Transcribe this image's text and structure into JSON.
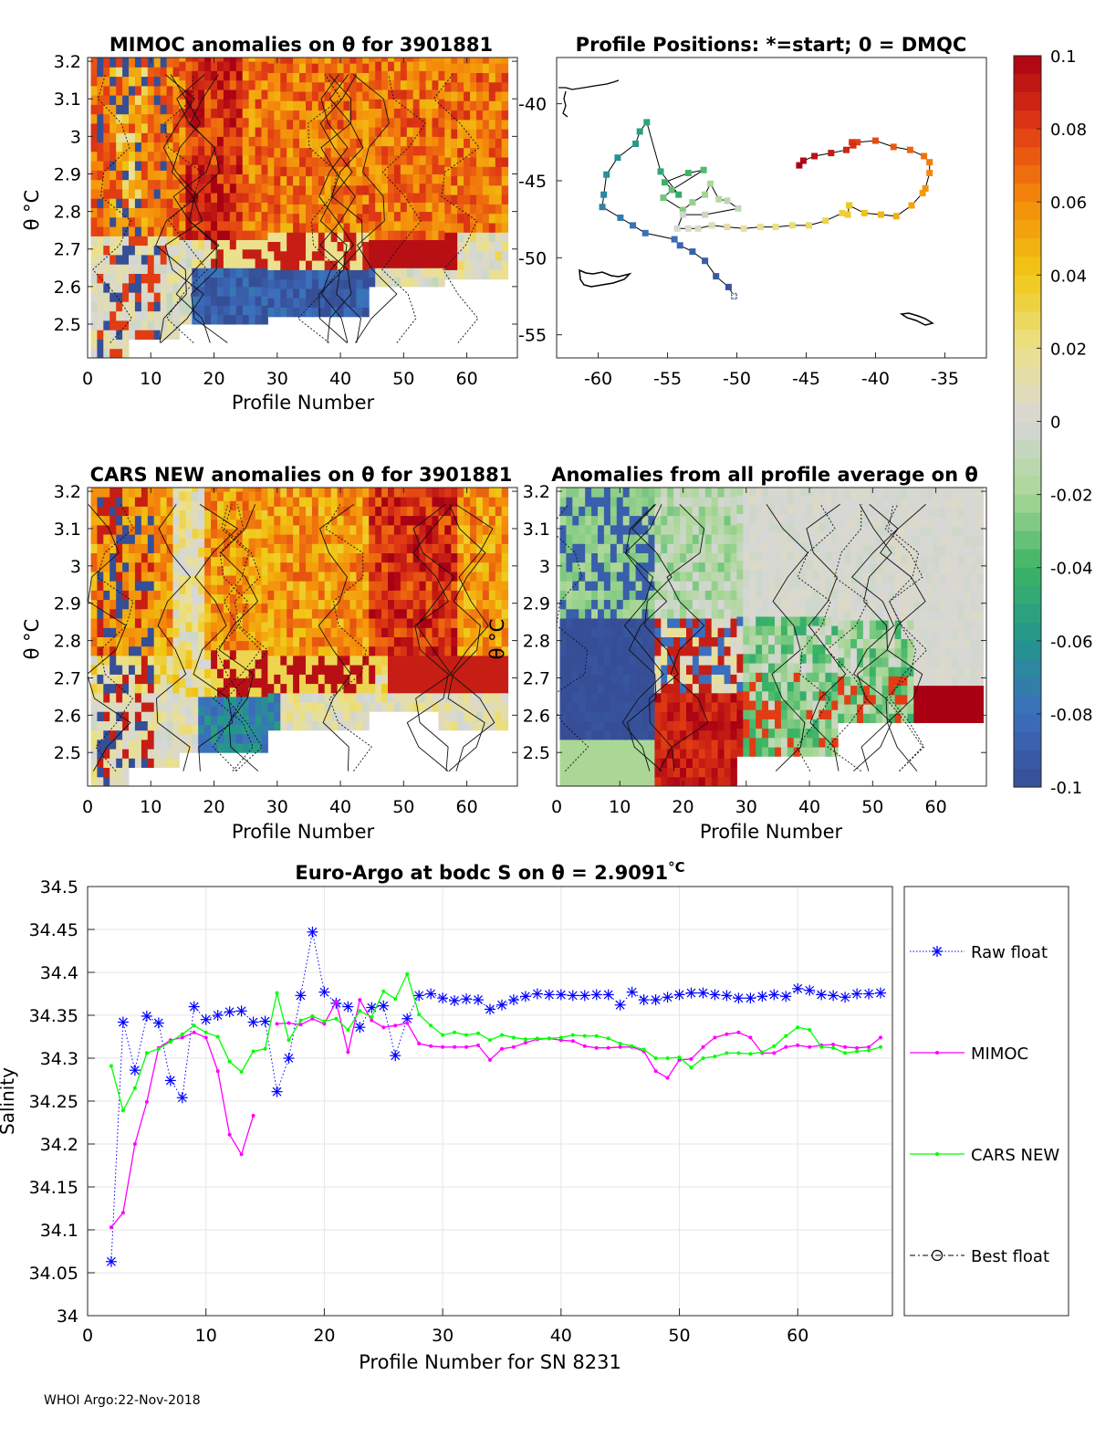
{
  "footer": "WHOI Argo:22-Nov-2018",
  "colorbar": {
    "ticks": [
      "0.1",
      "0.08",
      "0.06",
      "0.04",
      "0.02",
      "0",
      "-0.02",
      "-0.04",
      "-0.06",
      "-0.08",
      "-0.1"
    ],
    "range": [
      -0.1,
      0.1
    ]
  },
  "panels": {
    "mimoc": {
      "title": "MIMOC anomalies on θ  for 3901881",
      "ylabel": "θ °C",
      "xlabel": "Profile Number",
      "xticks": [
        "0",
        "10",
        "20",
        "30",
        "40",
        "50",
        "60"
      ],
      "yticks": [
        "3.2",
        "3.1",
        "3",
        "2.9",
        "2.8",
        "2.7",
        "2.6",
        "2.5"
      ]
    },
    "positions": {
      "title": "Profile Positions: *=start; 0 = DMQC",
      "xticks": [
        "-60",
        "-55",
        "-50",
        "-45",
        "-40",
        "-35"
      ],
      "yticks": [
        "-40",
        "-45",
        "-50",
        "-55"
      ]
    },
    "cars": {
      "title": "CARS NEW anomalies on θ for 3901881",
      "ylabel": "θ °C",
      "xlabel": "Profile Number",
      "xticks": [
        "0",
        "10",
        "20",
        "30",
        "40",
        "50",
        "60"
      ],
      "yticks": [
        "3.2",
        "3.1",
        "3",
        "2.9",
        "2.8",
        "2.7",
        "2.6",
        "2.5"
      ]
    },
    "allprof": {
      "title": "Anomalies from all profile average on θ",
      "ylabel": "θ °C",
      "xlabel": "Profile Number",
      "xticks": [
        "0",
        "10",
        "20",
        "30",
        "40",
        "50",
        "60"
      ],
      "yticks": [
        "3.2",
        "3.1",
        "3",
        "2.9",
        "2.8",
        "2.7",
        "2.6",
        "2.5"
      ]
    },
    "salinity": {
      "title": "Euro-Argo at bodc S on θ = 2.9091",
      "title_unit": "°C",
      "xlabel": "Profile Number for SN 8231",
      "ylabel": "Salinity",
      "xticks": [
        "0",
        "10",
        "20",
        "30",
        "40",
        "50",
        "60"
      ],
      "yticks": [
        "34.5",
        "34.45",
        "34.4",
        "34.35",
        "34.3",
        "34.25",
        "34.2",
        "34.15",
        "34.1",
        "34.05",
        "34"
      ],
      "legend": [
        "Raw float",
        "MIMOC",
        "CARS NEW",
        "Best float"
      ]
    }
  },
  "chart_data": [
    {
      "type": "heatmap",
      "title": "MIMOC anomalies on θ  for 3901881",
      "xlabel": "Profile Number",
      "ylabel": "θ °C",
      "xlim": [
        0,
        68
      ],
      "ylim": [
        2.41,
        3.21
      ],
      "pattern": "mostly positive (0.04 to 0.1) above 2.7°C; negative (-0.1) patches near 2.5-2.65°C for profiles 15-45; strong positive band near 2.65-2.7°C for profiles 45-58"
    },
    {
      "type": "scatter",
      "title": "Profile Positions: *=start; 0 = DMQC",
      "xlim": [
        -63,
        -32
      ],
      "ylim": [
        -56.5,
        -37
      ],
      "track_lon": [
        -50.2,
        -50.6,
        -51.5,
        -52.3,
        -53.2,
        -54.1,
        -54.5,
        -56.6,
        -57.5,
        -58.4,
        -59.7,
        -59.6,
        -59.4,
        -58.6,
        -57.3,
        -57,
        -56.5,
        -55.5,
        -54.2,
        -55.2,
        -53.5,
        -52.4,
        -54.7,
        -55.3,
        -53.9,
        -53.2,
        -52.3,
        -51.9,
        -51.3,
        -50.7,
        -49.9,
        -52.3,
        -53.9,
        -54.3,
        -53.5,
        -52.8,
        -51.8,
        -50.7,
        -49.5,
        -48.3,
        -47.2,
        -46,
        -44.8,
        -43.6,
        -42.4,
        -42,
        -41.9,
        -40.8,
        -39.6,
        -38.5,
        -37.4,
        -36.6,
        -36.4,
        -36.1,
        -36.1,
        -36.5,
        -37.5,
        -38.7,
        -40,
        -41.3,
        -41.7,
        -41.6,
        -42.1,
        -43.2,
        -44.4,
        -45.2,
        -45.5
      ],
      "track_lat": [
        -52.5,
        -51.9,
        -51.2,
        -50.2,
        -49.6,
        -49.2,
        -48.8,
        -48.4,
        -47.9,
        -47.4,
        -46.7,
        -45.9,
        -44.6,
        -43.5,
        -42.6,
        -41.8,
        -41.2,
        -44.4,
        -45.9,
        -45.1,
        -44.5,
        -44.3,
        -45.6,
        -46.1,
        -46.9,
        -46.4,
        -45.9,
        -45.2,
        -46.2,
        -46.3,
        -46.8,
        -47.2,
        -47.2,
        -48.1,
        -48.1,
        -48.1,
        -47.9,
        -48,
        -48.1,
        -48.0,
        -48.0,
        -47.9,
        -47.9,
        -47.6,
        -47.1,
        -47.2,
        -46.6,
        -47.1,
        -47.2,
        -47.3,
        -46.6,
        -45.8,
        -45.5,
        -44.5,
        -43.8,
        -43.4,
        -43.0,
        -42.8,
        -42.4,
        -42.5,
        -42.5,
        -42.7,
        -43.0,
        -43.2,
        -43.4,
        -43.7,
        -44.0
      ],
      "start": [
        -50.2,
        -52.5
      ]
    },
    {
      "type": "heatmap",
      "title": "CARS NEW anomalies on θ for 3901881",
      "xlabel": "Profile Number",
      "ylabel": "θ °C",
      "xlim": [
        0,
        68
      ],
      "ylim": [
        2.41,
        3.21
      ],
      "pattern": "mostly positive (0.04 to 0.1) above 2.7°C with strongest values near profiles 45-60; negative patches near 2.5-2.65°C for profiles 18-30"
    },
    {
      "type": "heatmap",
      "title": "Anomalies from all profile average on θ",
      "xlabel": "Profile Number",
      "ylabel": "θ °C",
      "xlim": [
        0,
        68
      ],
      "ylim": [
        2.41,
        3.21
      ],
      "pattern": "strongly negative (-0.1) for profiles 0-16 below 2.85°C; near zero above 2.9°C for profiles 25-68; strongly positive (0.1) near 2.5-2.65°C for profiles 16-28 and 57-68"
    },
    {
      "type": "line",
      "title": "Euro-Argo at bodc S on θ = 2.9091°C",
      "xlabel": "Profile Number for SN 8231",
      "ylabel": "Salinity",
      "xlim": [
        0,
        68
      ],
      "ylim": [
        34,
        34.5
      ],
      "series": [
        {
          "name": "Raw float",
          "x": [
            2,
            3,
            4,
            5,
            6,
            7,
            8,
            9,
            10,
            11,
            12,
            13,
            14,
            15,
            16,
            17,
            18,
            19,
            20,
            21,
            22,
            23,
            24,
            25,
            26,
            27,
            28,
            29,
            30,
            31,
            32,
            33,
            34,
            35,
            36,
            37,
            38,
            39,
            40,
            41,
            42,
            43,
            44,
            45,
            46,
            47,
            48,
            49,
            50,
            51,
            52,
            53,
            54,
            55,
            56,
            57,
            58,
            59,
            60,
            61,
            62,
            63,
            64,
            65,
            66,
            67
          ],
          "y": [
            34.063,
            34.342,
            34.286,
            34.349,
            34.341,
            34.274,
            34.254,
            34.36,
            34.345,
            34.35,
            34.354,
            34.355,
            34.342,
            34.343,
            34.261,
            34.3,
            34.373,
            34.447,
            34.377,
            34.364,
            34.36,
            34.336,
            34.359,
            34.361,
            34.303,
            34.346,
            34.373,
            34.375,
            34.37,
            34.367,
            34.369,
            34.368,
            34.357,
            34.362,
            34.368,
            34.372,
            34.375,
            34.374,
            34.374,
            34.373,
            34.373,
            34.374,
            34.374,
            34.362,
            34.377,
            34.368,
            34.368,
            34.371,
            34.374,
            34.376,
            34.376,
            34.374,
            34.373,
            34.37,
            34.37,
            34.372,
            34.374,
            34.372,
            34.381,
            34.379,
            34.374,
            34.373,
            34.371,
            34.375,
            34.375,
            34.376
          ]
        },
        {
          "name": "MIMOC",
          "x": [
            2,
            3,
            4,
            5,
            6,
            7,
            8,
            9,
            10,
            11,
            12,
            13,
            14,
            null,
            16,
            17,
            18,
            19,
            20,
            21,
            22,
            23,
            24,
            25,
            26,
            27,
            28,
            29,
            30,
            31,
            32,
            33,
            34,
            35,
            36,
            37,
            38,
            39,
            40,
            41,
            42,
            43,
            44,
            45,
            46,
            47,
            48,
            49,
            50,
            51,
            52,
            53,
            54,
            55,
            56,
            57,
            58,
            59,
            60,
            61,
            62,
            63,
            64,
            65,
            66,
            67
          ],
          "y": [
            34.103,
            34.12,
            34.2,
            34.249,
            34.312,
            34.321,
            34.324,
            34.33,
            34.324,
            34.285,
            34.211,
            34.188,
            34.233,
            null,
            34.34,
            34.341,
            34.339,
            34.346,
            34.34,
            34.366,
            34.307,
            34.368,
            34.344,
            34.336,
            34.338,
            34.341,
            34.317,
            34.314,
            34.313,
            34.313,
            34.313,
            34.315,
            34.298,
            34.311,
            34.313,
            34.318,
            34.322,
            34.323,
            34.321,
            34.32,
            34.314,
            34.312,
            34.312,
            34.313,
            34.313,
            34.308,
            34.285,
            34.277,
            34.298,
            34.299,
            34.313,
            34.324,
            34.328,
            34.33,
            34.324,
            34.306,
            34.306,
            34.313,
            34.315,
            34.313,
            34.315,
            34.316,
            34.313,
            34.312,
            34.313,
            34.324
          ]
        },
        {
          "name": "CARS NEW",
          "x": [
            2,
            3,
            4,
            5,
            6,
            7,
            8,
            9,
            10,
            11,
            12,
            13,
            14,
            15,
            16,
            17,
            18,
            19,
            20,
            21,
            22,
            23,
            24,
            25,
            26,
            27,
            28,
            29,
            30,
            31,
            32,
            33,
            34,
            35,
            36,
            37,
            38,
            39,
            40,
            41,
            42,
            43,
            44,
            45,
            46,
            47,
            48,
            49,
            50,
            51,
            52,
            53,
            54,
            55,
            56,
            57,
            58,
            59,
            60,
            61,
            62,
            63,
            64,
            65,
            66,
            67
          ],
          "y": [
            34.291,
            34.239,
            34.265,
            34.306,
            34.311,
            34.319,
            34.328,
            34.338,
            34.33,
            34.325,
            34.296,
            34.284,
            34.308,
            34.311,
            34.376,
            34.321,
            34.344,
            34.349,
            34.343,
            34.346,
            34.333,
            34.355,
            34.348,
            34.378,
            34.369,
            34.398,
            34.351,
            34.338,
            34.327,
            34.33,
            34.327,
            34.329,
            34.321,
            34.327,
            34.324,
            34.322,
            34.323,
            34.323,
            34.324,
            34.327,
            34.326,
            34.326,
            34.323,
            34.317,
            34.314,
            34.31,
            34.3,
            34.3,
            34.301,
            34.289,
            34.3,
            34.302,
            34.306,
            34.306,
            34.305,
            34.307,
            34.314,
            34.326,
            34.336,
            34.333,
            34.313,
            34.312,
            34.306,
            34.308,
            34.309,
            34.313
          ]
        },
        {
          "name": "Best float",
          "x": [],
          "y": []
        }
      ]
    }
  ]
}
